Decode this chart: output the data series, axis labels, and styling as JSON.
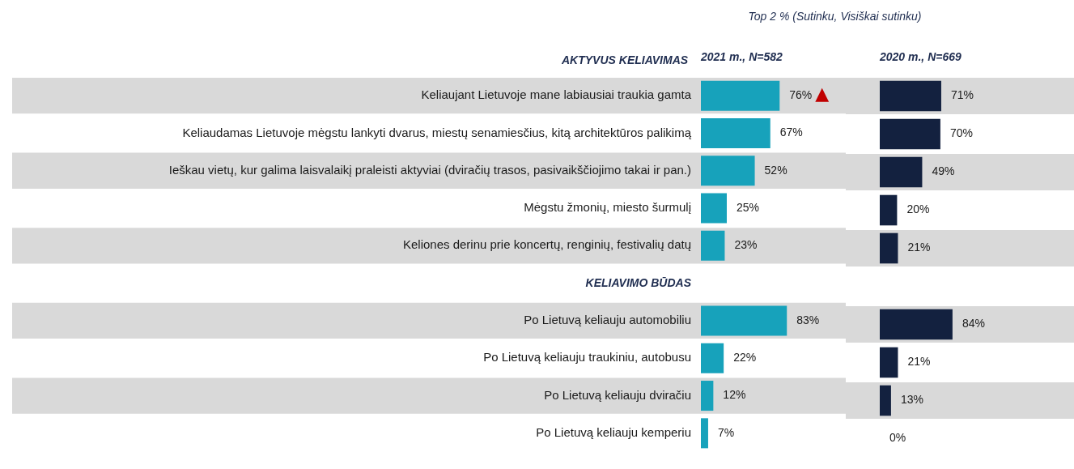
{
  "chart_data": [
    {
      "type": "bar",
      "orientation": "horizontal",
      "subtitle": "Top 2 % (Sutinku, Visiškai sutinku)",
      "title": "2021 m., N=582",
      "ylabel": "AKTYVUS KELIAVIMAS",
      "categories": [
        "Keliaujant Lietuvoje mane labiausiai traukia gamta",
        "Keliaudamas Lietuvoje mėgstu lankyti dvarus, miestų senamiesčius, kitą architektūros palikimą",
        "Ieškau vietų, kur galima laisvalaikį praleisti aktyviai (dviračių trasos, pasivaikščiojimo takai ir pan.)",
        "Mėgstu žmonių, miesto šurmulį",
        "Keliones derinu prie koncertų, renginių, festivalių datų",
        "KELIAVIMO BŪDAS",
        "Po Lietuvą keliauju automobiliu",
        "Po Lietuvą keliauju traukiniu, autobusu",
        "Po Lietuvą keliauju dviračiu",
        "Po Lietuvą keliauju kemperiu"
      ],
      "series": [
        {
          "color": "#17a2bb",
          "values": [
            76,
            67,
            52,
            25,
            23,
            null,
            83,
            22,
            12,
            7
          ],
          "value_labels": [
            "76%",
            "67%",
            "52%",
            "25%",
            "23%",
            null,
            "83%",
            "22%",
            "12%",
            "7%"
          ]
        }
      ],
      "tick_labels": "y",
      "bands": [
        {
          "axis": "y",
          "from": "Keliaujant Lietuvoje mane labiausiai traukia gamta",
          "to": "Keliaujant Lietuvoje mane labiausiai traukia gamta",
          "color": "#d9d9d9"
        },
        {
          "axis": "y",
          "from": "Ieškau vietų, kur galima laisvalaikį praleisti aktyviai (dviračių trasos, pasivaikščiojimo takai ir pan.)",
          "to": "Ieškau vietų, kur galima laisvalaikį praleisti aktyviai (dviračių trasos, pasivaikščiojimo takai ir pan.)",
          "color": "#d9d9d9"
        },
        {
          "axis": "y",
          "from": "Keliones derinu prie koncertų, renginių, festivalių datų",
          "to": "Keliones derinu prie koncertų, renginių, festivalių datų",
          "color": "#d9d9d9"
        },
        {
          "axis": "y",
          "from": "Po Lietuvą keliauju automobiliu",
          "to": "Po Lietuvą keliauju automobiliu",
          "color": "#d9d9d9"
        },
        {
          "axis": "y",
          "from": "Po Lietuvą keliauju dviračiu",
          "to": "Po Lietuvą keliauju dviračiu",
          "color": "#d9d9d9"
        }
      ],
      "annotations": [
        {
          "text": "▲",
          "x": 76,
          "y": "Keliaujant Lietuvoje mane labiausiai traukia gamta"
        }
      ]
    },
    {
      "type": "bar",
      "orientation": "horizontal",
      "title": "2020 m., N=669",
      "categories": [
        "Keliaujant Lietuvoje mane labiausiai traukia gamta",
        "Keliaudamas Lietuvoje mėgstu lankyti dvarus, miestų senamiesčius, kitą architektūros palikimą",
        "Ieškau vietų, kur galima laisvalaikį praleisti aktyviai (dviračių trasos, pasivaikščiojimo takai ir pan.)",
        "Mėgstu žmonių, miesto šurmulį",
        "Keliones derinu prie koncertų, renginių, festivalių datų",
        "KELIAVIMO BŪDAS",
        "Po Lietuvą keliauju automobiliu",
        "Po Lietuvą keliauju traukiniu, autobusu",
        "Po Lietuvą keliauju dviračiu",
        "Po Lietuvą keliauju kemperiu"
      ],
      "series": [
        {
          "color": "#13213f",
          "values": [
            71,
            70,
            49,
            20,
            21,
            null,
            84,
            21,
            13,
            0
          ],
          "value_labels": [
            "71%",
            "70%",
            "49%",
            "20%",
            "21%",
            null,
            "84%",
            "21%",
            "13%",
            "0%"
          ]
        }
      ],
      "tick_labels": false,
      "bands": [
        {
          "axis": "y",
          "from": "Keliaujant Lietuvoje mane labiausiai traukia gamta",
          "to": "Keliaujant Lietuvoje mane labiausiai traukia gamta",
          "color": "#d9d9d9"
        },
        {
          "axis": "y",
          "from": "Ieškau vietų, kur galima laisvalaikį praleisti aktyviai (dviračių trasos, pasivaikščiojimo takai ir pan.)",
          "to": "Ieškau vietų, kur galima laisvalaikį praleisti aktyviai (dviračių trasos, pasivaikščiojimo takai ir pan.)",
          "color": "#d9d9d9"
        },
        {
          "axis": "y",
          "from": "Keliones derinu prie koncertų, renginių, festivalių datų",
          "to": "Keliones derinu prie koncertų, renginių, festivalių datų",
          "color": "#d9d9d9"
        },
        {
          "axis": "y",
          "from": "Po Lietuvą keliauju automobiliu",
          "to": "Po Lietuvą keliauju automobiliu",
          "color": "#d9d9d9"
        },
        {
          "axis": "y",
          "from": "Po Lietuvą keliauju dviračiu",
          "to": "Po Lietuvą keliauju dviračiu",
          "color": "#d9d9d9"
        }
      ]
    }
  ]
}
